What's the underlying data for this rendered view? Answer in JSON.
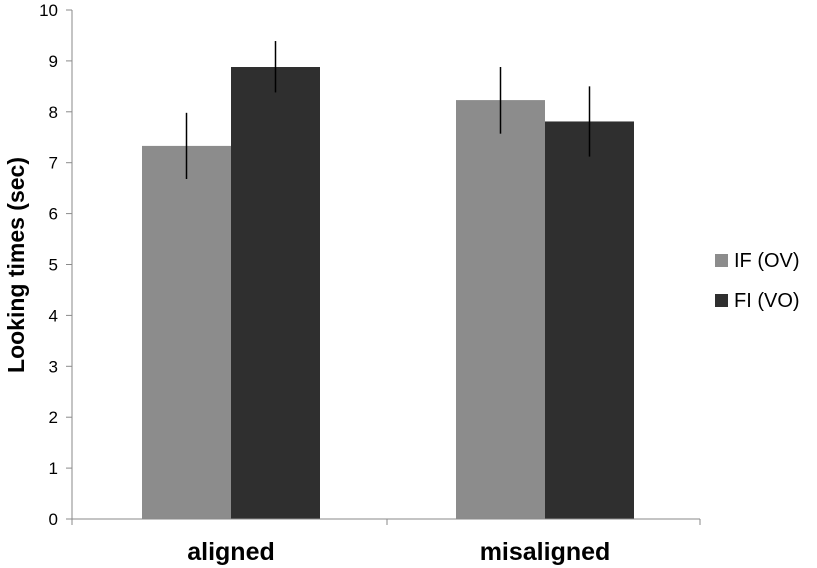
{
  "chart_data": {
    "type": "bar",
    "title": "",
    "xlabel": "",
    "ylabel": "Looking times (sec)",
    "ylim": [
      0,
      10
    ],
    "yticks": [
      0,
      1,
      2,
      3,
      4,
      5,
      6,
      7,
      8,
      9,
      10
    ],
    "categories": [
      "aligned",
      "misaligned"
    ],
    "series": [
      {
        "name": "IF (OV)",
        "color": "#8c8c8c",
        "values": [
          7.33,
          8.23
        ],
        "error_low": [
          6.68,
          7.57
        ],
        "error_high": [
          7.98,
          8.88
        ]
      },
      {
        "name": "FI (VO)",
        "color": "#2f2f2f",
        "values": [
          8.88,
          7.81
        ],
        "error_low": [
          8.38,
          7.12
        ],
        "error_high": [
          9.39,
          8.5
        ]
      }
    ],
    "grid": false,
    "legend_position": "right"
  }
}
